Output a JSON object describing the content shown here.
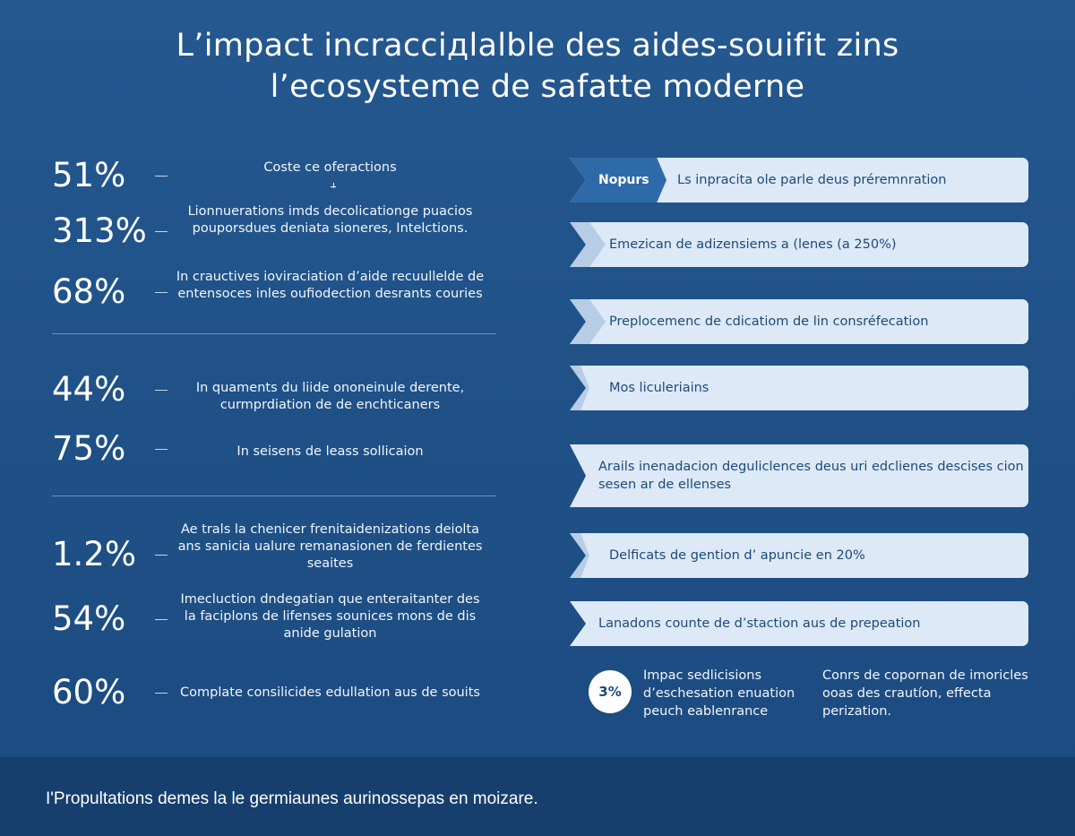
{
  "title": {
    "line1": "L’impact incracciдlalble des aides-souifit zins",
    "line2": "l’ecosysteme de safatte moderne"
  },
  "stats": [
    {
      "value": "51%",
      "desc": "Coste ce oferactions"
    },
    {
      "value": "313%",
      "desc": "Lionnuerations imds decolicationge puacios pouporsdues deniata sioneres, Intelctions."
    },
    {
      "value": "68%",
      "desc": "In crauctives ioviraciation d’aide recuullelde de entensoces inles oufiodection desrants couries"
    },
    {
      "value": "44%",
      "desc": "In quaments du liide ononeinule derente, curmprdiation de de enchticaners"
    },
    {
      "value": "75%",
      "desc": "In seisens de leass sollicaion"
    },
    {
      "value": "1.2%",
      "desc": "Ae trals la chenicer frenitaidenizations deiolta ans sanicia ualure remanasionen de ferdientes            seaites"
    },
    {
      "value": "54%",
      "desc": "Imecluction dndegatian que enteraitanter des la faciplons de lifenses sounices mons de dis anide gulation"
    },
    {
      "value": "60%",
      "desc": "Complate consilicides edullation aus de souits"
    }
  ],
  "banners": [
    {
      "tag": "Nopurs",
      "text": "Ls inpracita ole parle deus préremnration"
    },
    {
      "text": "Emezican de adizensiems a (lenes (a 250%)"
    },
    {
      "text": "Preplocemenc de cdicatiom de lin consréfecation"
    },
    {
      "text": "Mos liculeriains"
    },
    {
      "text": "Arails inenadacion deguliclences deus uri edclienes descises cion sesen ar de ellenses"
    },
    {
      "text": "Delficats de gention d’ apuncie en 20%"
    },
    {
      "text": "Lanadons counte de d’staction aus de prepeation"
    }
  ],
  "badge": "3%",
  "note_left": "Impac sedlicisions d’eschesation enuation peuch eablenrance",
  "note_right": "Conrs de copornan de imoricles ooas des crautíon, effecta perization.",
  "footer": "I'Propultations demes la le germiaunes aurinossepas en moizare."
}
